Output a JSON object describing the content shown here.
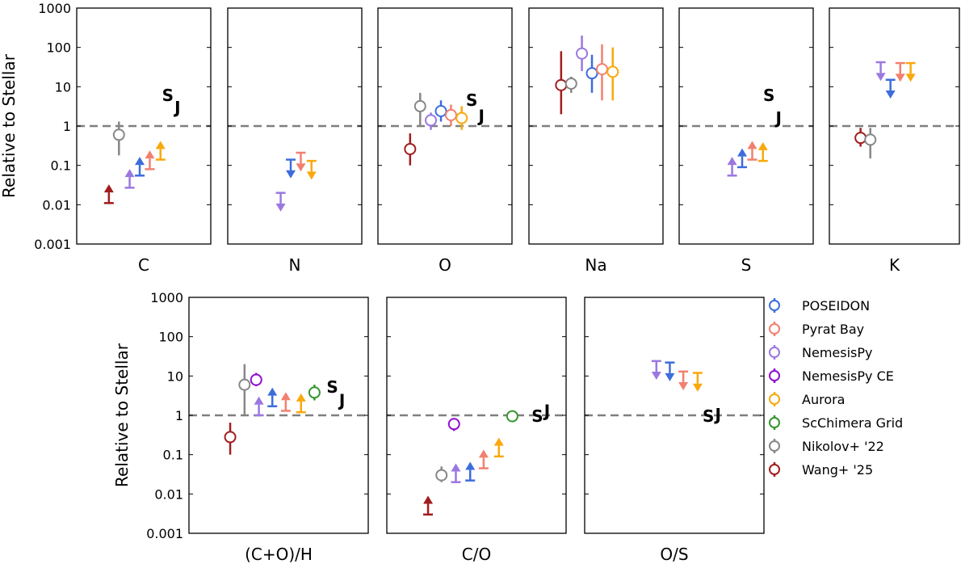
{
  "figure": {
    "ylabel": "Relative to Stellar",
    "y_scale": "log",
    "ylim": [
      0.001,
      1000
    ],
    "reference_line": 1
  },
  "series_colors": {
    "POSEIDON": "#3d6ddc",
    "Pyrat Bay": "#f28070",
    "NemesisPy": "#9b78e0",
    "NemesisPy CE": "#8f10cf",
    "Aurora": "#f9a80d",
    "ScChimera Grid": "#34962e",
    "Nikolov+ '22": "#878787",
    "Wang+ '25": "#a11d1d",
    "S_J": "#000000"
  },
  "legend": {
    "location": "right",
    "entries": [
      "POSEIDON",
      "Pyrat Bay",
      "NemesisPy",
      "NemesisPy CE",
      "Aurora",
      "ScChimera Grid",
      "Nikolov+ '22",
      "Wang+ '25"
    ]
  },
  "chart_data": [
    {
      "type": "scatter",
      "title": "C",
      "show_y_ticks": true,
      "show_ylabel": true,
      "points": [
        {
          "series": "Wang+ '25",
          "kind": "lower",
          "y": 0.011
        },
        {
          "series": "NemesisPy",
          "kind": "lower",
          "y": 0.027
        },
        {
          "series": "POSEIDON",
          "kind": "lower",
          "y": 0.055
        },
        {
          "series": "Pyrat Bay",
          "kind": "lower",
          "y": 0.08
        },
        {
          "series": "Aurora",
          "kind": "lower",
          "y": 0.14
        },
        {
          "series": "Nikolov+ '22",
          "kind": "point",
          "y": 0.6,
          "lo": 0.18,
          "hi": 1.3
        }
      ],
      "sj": {
        "s": 6,
        "j": 3
      }
    },
    {
      "type": "scatter",
      "title": "N",
      "show_y_ticks": false,
      "show_ylabel": false,
      "points": [
        {
          "series": "NemesisPy",
          "kind": "upper",
          "y": 0.02
        },
        {
          "series": "POSEIDON",
          "kind": "upper",
          "y": 0.14
        },
        {
          "series": "Pyrat Bay",
          "kind": "upper",
          "y": 0.21
        },
        {
          "series": "Aurora",
          "kind": "upper",
          "y": 0.13
        }
      ]
    },
    {
      "type": "scatter",
      "title": "O",
      "show_y_ticks": false,
      "show_ylabel": false,
      "points": [
        {
          "series": "Wang+ '25",
          "kind": "point",
          "y": 0.26,
          "lo": 0.1,
          "hi": 0.65
        },
        {
          "series": "Nikolov+ '22",
          "kind": "point",
          "y": 3.2,
          "lo": 1.0,
          "hi": 7.0
        },
        {
          "series": "NemesisPy",
          "kind": "point",
          "y": 1.4,
          "lo": 0.8,
          "hi": 2.2
        },
        {
          "series": "POSEIDON",
          "kind": "point",
          "y": 2.4,
          "lo": 1.3,
          "hi": 4.5
        },
        {
          "series": "Pyrat Bay",
          "kind": "point",
          "y": 1.9,
          "lo": 1.0,
          "hi": 3.5
        },
        {
          "series": "Aurora",
          "kind": "point",
          "y": 1.6,
          "lo": 0.8,
          "hi": 3.2
        }
      ],
      "sj": {
        "s": 4.5,
        "j": 1.8
      }
    },
    {
      "type": "scatter",
      "title": "Na",
      "show_y_ticks": false,
      "show_ylabel": false,
      "points": [
        {
          "series": "Wang+ '25",
          "kind": "point",
          "y": 11,
          "lo": 2,
          "hi": 80
        },
        {
          "series": "Nikolov+ '22",
          "kind": "point",
          "y": 12,
          "lo": 7,
          "hi": 18
        },
        {
          "series": "NemesisPy",
          "kind": "point",
          "y": 70,
          "lo": 25,
          "hi": 200
        },
        {
          "series": "POSEIDON",
          "kind": "point",
          "y": 22,
          "lo": 7,
          "hi": 65
        },
        {
          "series": "Pyrat Bay",
          "kind": "point",
          "y": 28,
          "lo": 4.5,
          "hi": 120
        },
        {
          "series": "Aurora",
          "kind": "point",
          "y": 24,
          "lo": 4.5,
          "hi": 100
        }
      ]
    },
    {
      "type": "scatter",
      "title": "S",
      "show_y_ticks": false,
      "show_ylabel": false,
      "points": [
        {
          "series": "NemesisPy",
          "kind": "lower",
          "y": 0.055
        },
        {
          "series": "POSEIDON",
          "kind": "lower",
          "y": 0.09
        },
        {
          "series": "Pyrat Bay",
          "kind": "lower",
          "y": 0.14
        },
        {
          "series": "Aurora",
          "kind": "lower",
          "y": 0.13
        }
      ],
      "sj": {
        "s": 6,
        "j": 1.6
      }
    },
    {
      "type": "scatter",
      "title": "K",
      "show_y_ticks": false,
      "show_ylabel": false,
      "points": [
        {
          "series": "Wang+ '25",
          "kind": "point",
          "y": 0.5,
          "lo": 0.3,
          "hi": 0.9
        },
        {
          "series": "Nikolov+ '22",
          "kind": "point",
          "y": 0.45,
          "lo": 0.15,
          "hi": 0.9
        },
        {
          "series": "NemesisPy",
          "kind": "upper",
          "y": 42
        },
        {
          "series": "POSEIDON",
          "kind": "upper",
          "y": 15
        },
        {
          "series": "Pyrat Bay",
          "kind": "upper",
          "y": 40
        },
        {
          "series": "Aurora",
          "kind": "upper",
          "y": 40
        }
      ]
    },
    {
      "type": "scatter",
      "title": "(C+O)/H",
      "show_y_ticks": true,
      "show_ylabel": true,
      "points": [
        {
          "series": "Wang+ '25",
          "kind": "point",
          "y": 0.28,
          "lo": 0.1,
          "hi": 0.65
        },
        {
          "series": "Nikolov+ '22",
          "kind": "point",
          "y": 6,
          "lo": 1.0,
          "hi": 20
        },
        {
          "series": "NemesisPy CE",
          "kind": "point",
          "y": 8,
          "lo": 5.5,
          "hi": 12
        },
        {
          "series": "NemesisPy",
          "kind": "lower",
          "y": 1.0
        },
        {
          "series": "POSEIDON",
          "kind": "lower",
          "y": 1.7
        },
        {
          "series": "Pyrat Bay",
          "kind": "lower",
          "y": 1.3
        },
        {
          "series": "Aurora",
          "kind": "lower",
          "y": 1.2
        },
        {
          "series": "ScChimera Grid",
          "kind": "point",
          "y": 3.8,
          "lo": 2.4,
          "hi": 6.0
        }
      ],
      "sj": {
        "s": 5.2,
        "j": 2.4
      }
    },
    {
      "type": "scatter",
      "title": "C/O",
      "show_y_ticks": false,
      "show_ylabel": false,
      "points": [
        {
          "series": "Wang+ '25",
          "kind": "lower",
          "y": 0.003
        },
        {
          "series": "NemesisPy CE",
          "kind": "point",
          "y": 0.6,
          "lo": 0.4,
          "hi": 0.8
        },
        {
          "series": "Nikolov+ '22",
          "kind": "point",
          "y": 0.03,
          "lo": 0.02,
          "hi": 0.05
        },
        {
          "series": "NemesisPy",
          "kind": "lower",
          "y": 0.02
        },
        {
          "series": "POSEIDON",
          "kind": "lower",
          "y": 0.022
        },
        {
          "series": "Pyrat Bay",
          "kind": "lower",
          "y": 0.045
        },
        {
          "series": "Aurora",
          "kind": "lower",
          "y": 0.09
        },
        {
          "series": "ScChimera Grid",
          "kind": "point",
          "y": 0.95,
          "lo": 0.9,
          "hi": 1.0
        }
      ],
      "sj": {
        "s": 0.95,
        "j": 1.3
      }
    },
    {
      "type": "scatter",
      "title": "O/S",
      "show_y_ticks": false,
      "show_ylabel": false,
      "points": [
        {
          "series": "NemesisPy",
          "kind": "upper",
          "y": 24
        },
        {
          "series": "POSEIDON",
          "kind": "upper",
          "y": 22
        },
        {
          "series": "Pyrat Bay",
          "kind": "upper",
          "y": 13
        },
        {
          "series": "Aurora",
          "kind": "upper",
          "y": 12
        }
      ],
      "sj": {
        "s": 0.95,
        "j": 1.05
      }
    }
  ],
  "sj_text": {
    "s": "S",
    "j": "J"
  }
}
